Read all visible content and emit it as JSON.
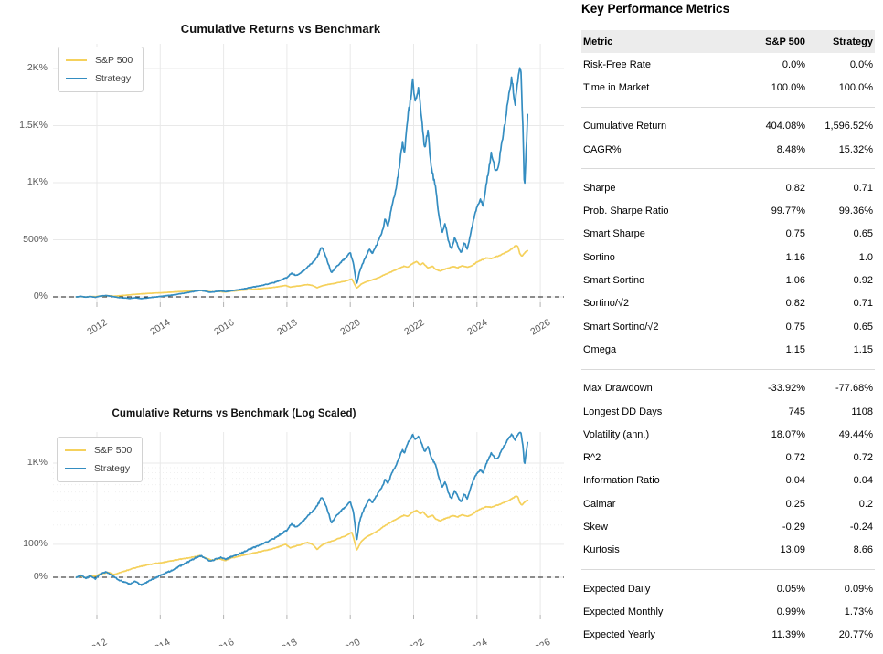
{
  "metrics": {
    "title": "Key Performance Metrics",
    "columns": [
      "Metric",
      "S&P 500",
      "Strategy"
    ],
    "groups": [
      [
        [
          "Risk-Free Rate",
          "0.0%",
          "0.0%"
        ],
        [
          "Time in Market",
          "100.0%",
          "100.0%"
        ]
      ],
      [
        [
          "Cumulative Return",
          "404.08%",
          "1,596.52%"
        ],
        [
          "CAGR%",
          "8.48%",
          "15.32%"
        ]
      ],
      [
        [
          "Sharpe",
          "0.82",
          "0.71"
        ],
        [
          "Prob. Sharpe Ratio",
          "99.77%",
          "99.36%"
        ],
        [
          "Smart Sharpe",
          "0.75",
          "0.65"
        ],
        [
          "Sortino",
          "1.16",
          "1.0"
        ],
        [
          "Smart Sortino",
          "1.06",
          "0.92"
        ],
        [
          "Sortino/√2",
          "0.82",
          "0.71"
        ],
        [
          "Smart Sortino/√2",
          "0.75",
          "0.65"
        ],
        [
          "Omega",
          "1.15",
          "1.15"
        ]
      ],
      [
        [
          "Max Drawdown",
          "-33.92%",
          "-77.68%"
        ],
        [
          "Longest DD Days",
          "745",
          "1108"
        ],
        [
          "Volatility (ann.)",
          "18.07%",
          "49.44%"
        ],
        [
          "R^2",
          "0.72",
          "0.72"
        ],
        [
          "Information Ratio",
          "0.04",
          "0.04"
        ],
        [
          "Calmar",
          "0.25",
          "0.2"
        ],
        [
          "Skew",
          "-0.29",
          "-0.24"
        ],
        [
          "Kurtosis",
          "13.09",
          "8.66"
        ]
      ],
      [
        [
          "Expected Daily",
          "0.05%",
          "0.09%"
        ],
        [
          "Expected Monthly",
          "0.99%",
          "1.73%"
        ],
        [
          "Expected Yearly",
          "11.39%",
          "20.77%"
        ]
      ]
    ]
  },
  "colors": {
    "sp500": "#f5d15c",
    "strategy": "#348dc1",
    "grid": "#e9e9e9",
    "grid_minor": "#f0f0f0",
    "tick_label": "#595959",
    "zero_line": "#1a1a1a",
    "header_bg": "#ececec"
  },
  "chart_data": [
    {
      "type": "line",
      "scale": "linear",
      "title": "Cumulative Returns vs Benchmark",
      "x_ticks": [
        "2012",
        "2014",
        "2016",
        "2018",
        "2020",
        "2022",
        "2024",
        "2026"
      ],
      "y_ticks": [
        {
          "value": 2000,
          "label": "2K%"
        },
        {
          "value": 1500,
          "label": "1.5K%"
        },
        {
          "value": 1000,
          "label": "1K%"
        },
        {
          "value": 500,
          "label": "500%"
        },
        {
          "value": 0,
          "label": "0%"
        }
      ],
      "y_axis": "cumulative return (%)",
      "x_axis": "year",
      "legend_position": "top-left",
      "grid": true,
      "zero_line_dashed": true,
      "series": [
        {
          "name": "S&P 500",
          "color": "#f5d15c",
          "jitter": 0.011,
          "final_value_pct": 404.08,
          "points": [
            [
              2011.35,
              0
            ],
            [
              2011.5,
              3
            ],
            [
              2011.65,
              -2
            ],
            [
              2011.8,
              4
            ],
            [
              2011.95,
              2
            ],
            [
              2012.1,
              7
            ],
            [
              2012.35,
              11
            ],
            [
              2012.55,
              6
            ],
            [
              2012.8,
              12
            ],
            [
              2013.05,
              18
            ],
            [
              2013.3,
              24
            ],
            [
              2013.55,
              29
            ],
            [
              2013.8,
              33
            ],
            [
              2014.05,
              36
            ],
            [
              2014.3,
              40
            ],
            [
              2014.55,
              45
            ],
            [
              2014.8,
              49
            ],
            [
              2015.05,
              53
            ],
            [
              2015.25,
              57
            ],
            [
              2015.45,
              49
            ],
            [
              2015.65,
              43
            ],
            [
              2015.85,
              48
            ],
            [
              2016.05,
              42
            ],
            [
              2016.25,
              50
            ],
            [
              2016.5,
              56
            ],
            [
              2016.75,
              62
            ],
            [
              2017.0,
              68
            ],
            [
              2017.25,
              74
            ],
            [
              2017.5,
              80
            ],
            [
              2017.75,
              90
            ],
            [
              2017.95,
              100
            ],
            [
              2018.1,
              86
            ],
            [
              2018.25,
              92
            ],
            [
              2018.45,
              98
            ],
            [
              2018.65,
              108
            ],
            [
              2018.8,
              100
            ],
            [
              2018.95,
              80
            ],
            [
              2019.1,
              96
            ],
            [
              2019.3,
              108
            ],
            [
              2019.5,
              118
            ],
            [
              2019.7,
              130
            ],
            [
              2019.9,
              142
            ],
            [
              2020.05,
              158
            ],
            [
              2020.2,
              76
            ],
            [
              2020.35,
              112
            ],
            [
              2020.5,
              132
            ],
            [
              2020.65,
              146
            ],
            [
              2020.8,
              158
            ],
            [
              2020.95,
              176
            ],
            [
              2021.1,
              196
            ],
            [
              2021.25,
              214
            ],
            [
              2021.4,
              232
            ],
            [
              2021.55,
              252
            ],
            [
              2021.7,
              268
            ],
            [
              2021.8,
              258
            ],
            [
              2021.95,
              290
            ],
            [
              2022.1,
              310
            ],
            [
              2022.2,
              280
            ],
            [
              2022.3,
              296
            ],
            [
              2022.45,
              252
            ],
            [
              2022.6,
              268
            ],
            [
              2022.7,
              240
            ],
            [
              2022.85,
              226
            ],
            [
              2022.95,
              240
            ],
            [
              2023.1,
              252
            ],
            [
              2023.25,
              266
            ],
            [
              2023.4,
              256
            ],
            [
              2023.55,
              272
            ],
            [
              2023.7,
              258
            ],
            [
              2023.85,
              276
            ],
            [
              2024.0,
              304
            ],
            [
              2024.15,
              324
            ],
            [
              2024.3,
              340
            ],
            [
              2024.45,
              336
            ],
            [
              2024.6,
              352
            ],
            [
              2024.75,
              368
            ],
            [
              2024.9,
              386
            ],
            [
              2025.0,
              400
            ],
            [
              2025.1,
              420
            ],
            [
              2025.2,
              444
            ],
            [
              2025.28,
              450
            ],
            [
              2025.35,
              380
            ],
            [
              2025.42,
              352
            ],
            [
              2025.52,
              390
            ],
            [
              2025.6,
              404.08
            ]
          ]
        },
        {
          "name": "Strategy",
          "color": "#348dc1",
          "jitter": 0.022,
          "final_value_pct": 1596.52,
          "points": [
            [
              2011.35,
              0
            ],
            [
              2011.5,
              4
            ],
            [
              2011.65,
              -2
            ],
            [
              2011.8,
              3
            ],
            [
              2011.95,
              -3
            ],
            [
              2012.1,
              6
            ],
            [
              2012.3,
              12
            ],
            [
              2012.5,
              3
            ],
            [
              2012.7,
              -6
            ],
            [
              2012.9,
              -10
            ],
            [
              2013.05,
              -14
            ],
            [
              2013.2,
              -8
            ],
            [
              2013.4,
              -15
            ],
            [
              2013.6,
              -9
            ],
            [
              2013.8,
              -3
            ],
            [
              2014.0,
              4
            ],
            [
              2014.2,
              10
            ],
            [
              2014.4,
              16
            ],
            [
              2014.6,
              26
            ],
            [
              2014.8,
              34
            ],
            [
              2015.0,
              44
            ],
            [
              2015.15,
              52
            ],
            [
              2015.3,
              58
            ],
            [
              2015.45,
              48
            ],
            [
              2015.6,
              40
            ],
            [
              2015.75,
              46
            ],
            [
              2015.9,
              52
            ],
            [
              2016.05,
              46
            ],
            [
              2016.2,
              52
            ],
            [
              2016.4,
              60
            ],
            [
              2016.6,
              68
            ],
            [
              2016.8,
              80
            ],
            [
              2017.0,
              90
            ],
            [
              2017.2,
              100
            ],
            [
              2017.4,
              112
            ],
            [
              2017.6,
              126
            ],
            [
              2017.8,
              148
            ],
            [
              2018.0,
              170
            ],
            [
              2018.15,
              205
            ],
            [
              2018.3,
              185
            ],
            [
              2018.45,
              215
            ],
            [
              2018.6,
              250
            ],
            [
              2018.75,
              285
            ],
            [
              2018.9,
              330
            ],
            [
              2019.0,
              375
            ],
            [
              2019.1,
              440
            ],
            [
              2019.25,
              340
            ],
            [
              2019.4,
              210
            ],
            [
              2019.55,
              260
            ],
            [
              2019.7,
              300
            ],
            [
              2019.85,
              340
            ],
            [
              2020.0,
              390
            ],
            [
              2020.1,
              290
            ],
            [
              2020.2,
              110
            ],
            [
              2020.3,
              230
            ],
            [
              2020.45,
              330
            ],
            [
              2020.6,
              420
            ],
            [
              2020.7,
              380
            ],
            [
              2020.85,
              470
            ],
            [
              2021.0,
              560
            ],
            [
              2021.1,
              680
            ],
            [
              2021.2,
              620
            ],
            [
              2021.3,
              780
            ],
            [
              2021.45,
              950
            ],
            [
              2021.55,
              1150
            ],
            [
              2021.65,
              1350
            ],
            [
              2021.72,
              1250
            ],
            [
              2021.8,
              1550
            ],
            [
              2021.9,
              1730
            ],
            [
              2021.97,
              1890
            ],
            [
              2022.05,
              1700
            ],
            [
              2022.15,
              1820
            ],
            [
              2022.25,
              1580
            ],
            [
              2022.35,
              1300
            ],
            [
              2022.45,
              1450
            ],
            [
              2022.55,
              1150
            ],
            [
              2022.7,
              950
            ],
            [
              2022.8,
              700
            ],
            [
              2022.9,
              560
            ],
            [
              2023.0,
              640
            ],
            [
              2023.1,
              480
            ],
            [
              2023.2,
              420
            ],
            [
              2023.3,
              520
            ],
            [
              2023.4,
              440
            ],
            [
              2023.5,
              380
            ],
            [
              2023.6,
              480
            ],
            [
              2023.7,
              420
            ],
            [
              2023.8,
              560
            ],
            [
              2023.95,
              740
            ],
            [
              2024.1,
              850
            ],
            [
              2024.2,
              800
            ],
            [
              2024.3,
              1000
            ],
            [
              2024.45,
              1240
            ],
            [
              2024.6,
              1100
            ],
            [
              2024.7,
              1180
            ],
            [
              2024.8,
              1380
            ],
            [
              2024.9,
              1550
            ],
            [
              2025.0,
              1750
            ],
            [
              2025.1,
              1910
            ],
            [
              2025.2,
              1660
            ],
            [
              2025.3,
              1950
            ],
            [
              2025.38,
              2030
            ],
            [
              2025.45,
              1500
            ],
            [
              2025.5,
              930
            ],
            [
              2025.55,
              1250
            ],
            [
              2025.6,
              1596.52
            ]
          ]
        }
      ]
    },
    {
      "type": "line",
      "scale": "log",
      "title": "Cumulative Returns vs Benchmark (Log Scaled)",
      "x_ticks": [
        "2012",
        "2014",
        "2016",
        "2018",
        "2020",
        "2022",
        "2024",
        "2026"
      ],
      "y_ticks": [
        {
          "value": 1000,
          "label": "1K%"
        },
        {
          "value": 100,
          "label": "100%"
        },
        {
          "value": 0,
          "label": "0%"
        }
      ],
      "y_axis": "cumulative return (%, log scaled)",
      "x_axis": "year",
      "legend_position": "top-left",
      "grid": true,
      "zero_line_dashed": true,
      "series_ref": 0,
      "note": "Same two series as the first chart rendered on a log-scaled y axis"
    }
  ]
}
